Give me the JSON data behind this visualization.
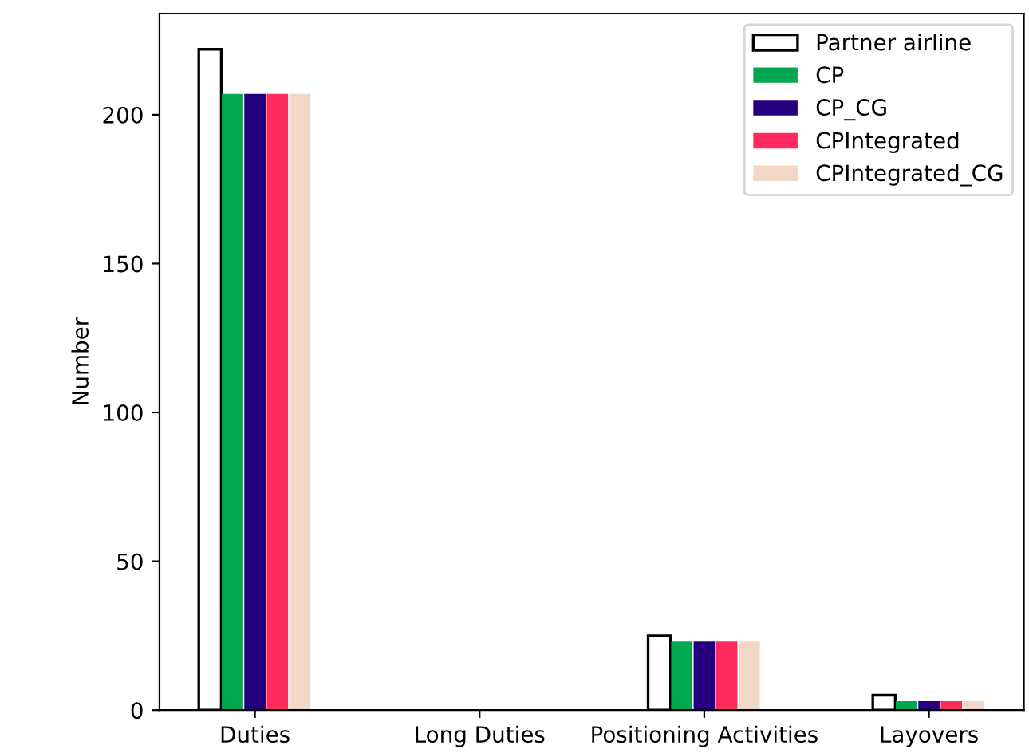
{
  "chart_data": {
    "type": "bar",
    "ylabel": "Number",
    "categories": [
      "Duties",
      "Long Duties",
      "Positioning Activities",
      "Layovers"
    ],
    "series": [
      {
        "name": "Partner airline",
        "color": "#ffffff",
        "values": [
          222,
          0,
          25,
          5
        ]
      },
      {
        "name": "CP",
        "color": "#00a84f",
        "values": [
          207,
          0,
          23,
          3
        ]
      },
      {
        "name": "CP_CG",
        "color": "#24007f",
        "values": [
          207,
          0,
          23,
          3
        ]
      },
      {
        "name": "CPIntegrated",
        "color": "#ff2a5f",
        "values": [
          207,
          0,
          23,
          3
        ]
      },
      {
        "name": "CPIntegrated_CG",
        "color": "#f2d7c4",
        "values": [
          207,
          0,
          23,
          3
        ]
      }
    ],
    "ylim": [
      0,
      234
    ],
    "yticks": [
      0,
      50,
      100,
      150,
      200
    ],
    "grid": false,
    "legend": "top right"
  }
}
